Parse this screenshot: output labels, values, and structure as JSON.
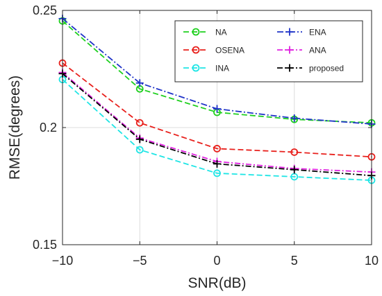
{
  "chart_data": {
    "type": "line",
    "xlabel": "SNR(dB)",
    "ylabel": "RMSE(degrees)",
    "x": [
      -10,
      -5,
      0,
      5,
      10
    ],
    "xlim": [
      -10,
      10
    ],
    "ylim": [
      0.15,
      0.25
    ],
    "xticks": [
      -10,
      -5,
      0,
      5,
      10
    ],
    "xtick_labels": [
      "−10",
      "−5",
      "0",
      "5",
      "10"
    ],
    "yticks": [
      0.15,
      0.2,
      0.25
    ],
    "ytick_labels": [
      "0.15",
      "0.2",
      "0.25"
    ],
    "grid": true,
    "legend_position": "top-right",
    "legend_columns": 2,
    "series": [
      {
        "name": "NA",
        "color": "#1fd01f",
        "dash": "8,4",
        "marker": "circle",
        "values": [
          0.2455,
          0.2165,
          0.2065,
          0.2035,
          0.202
        ]
      },
      {
        "name": "ENA",
        "color": "#1f33c8",
        "dash": "9,3,2,3",
        "marker": "plus",
        "values": [
          0.2465,
          0.219,
          0.208,
          0.204,
          0.2015
        ]
      },
      {
        "name": "OSENA",
        "color": "#e8201c",
        "dash": "8,4",
        "marker": "circle",
        "values": [
          0.2275,
          0.202,
          0.191,
          0.1895,
          0.1875
        ]
      },
      {
        "name": "ANA",
        "color": "#e020e0",
        "dash": "8,3,2,3",
        "marker": "plus",
        "values": [
          0.2235,
          0.1955,
          0.1855,
          0.1825,
          0.181
        ]
      },
      {
        "name": "INA",
        "color": "#1ee5e5",
        "dash": "8,4",
        "marker": "circle",
        "values": [
          0.2205,
          0.1905,
          0.1805,
          0.179,
          0.1775
        ]
      },
      {
        "name": "proposed",
        "color": "#000000",
        "dash": "8,3,2,3",
        "marker": "plus",
        "values": [
          0.223,
          0.195,
          0.1845,
          0.182,
          0.1795
        ]
      }
    ]
  }
}
